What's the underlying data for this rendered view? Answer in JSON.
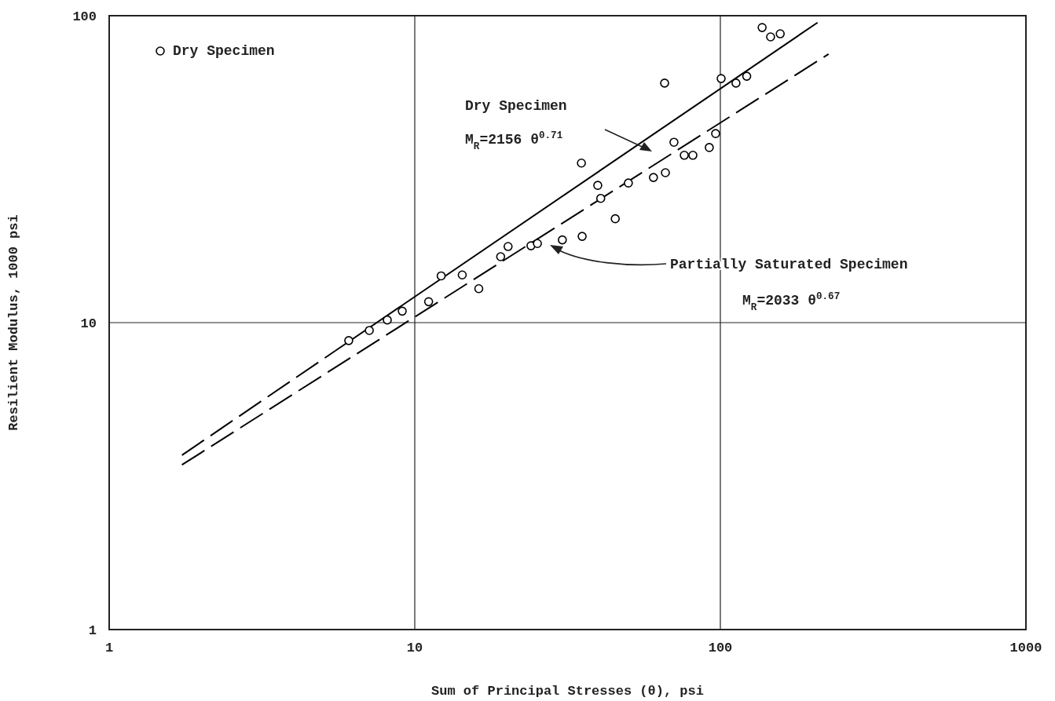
{
  "chart_data": {
    "type": "scatter",
    "xlabel": "Sum of Principal Stresses (θ), psi",
    "ylabel": "Resilient Modulus, 1000 psi",
    "log": "xy",
    "xlim": [
      1,
      1000
    ],
    "ylim": [
      1,
      100
    ],
    "xticks": [
      1,
      10,
      100,
      1000
    ],
    "yticks": [
      1,
      10,
      100
    ],
    "grid": true,
    "legend": "top left",
    "series": [
      {
        "name": "Dry Specimen",
        "marker": "circle",
        "color": "#000000",
        "x": [
          6.08,
          7.1,
          8.13,
          9.1,
          11.1,
          12.2,
          14.3,
          16.2,
          19.1,
          20.2,
          24.0,
          25.2,
          30.4,
          35.3,
          35.1,
          39.7,
          40.6,
          45.3,
          50.0,
          60.4,
          66.1,
          65.7,
          70.5,
          76.2,
          81.3,
          92.0,
          96.5,
          100.6,
          112.5,
          122,
          137,
          146,
          157
        ],
        "values": [
          8.74,
          9.43,
          10.2,
          10.9,
          11.7,
          14.2,
          14.3,
          12.9,
          16.4,
          17.7,
          17.8,
          18.1,
          18.6,
          19.1,
          33.1,
          28.0,
          25.4,
          21.8,
          28.5,
          29.7,
          30.8,
          60.3,
          38.7,
          35.1,
          35.1,
          37.2,
          41.3,
          62.4,
          60.3,
          63.5,
          91.5,
          85.3,
          87.3
        ]
      },
      {
        "type": "line",
        "color": "#000000",
        "line_style": "dashed",
        "x": [
          1.73,
          5.5
        ],
        "values": [
          3.7,
          8.1
        ]
      },
      {
        "type": "line",
        "color": "#000000",
        "line_style": "solid",
        "x": [
          5.5,
          208
        ],
        "values": [
          8.1,
          95
        ]
      },
      {
        "type": "line",
        "color": "#000000",
        "line_style": "dashed",
        "x": [
          1.73,
          226
        ],
        "values": [
          3.44,
          75
        ]
      }
    ],
    "annotations": [
      "Dry Specimen",
      "M$_{R}$=2156 θ$^{0.71}$",
      "Partially Saturated Specimen",
      "M$_{R}$=2033 θ$^{0.67}$"
    ]
  }
}
